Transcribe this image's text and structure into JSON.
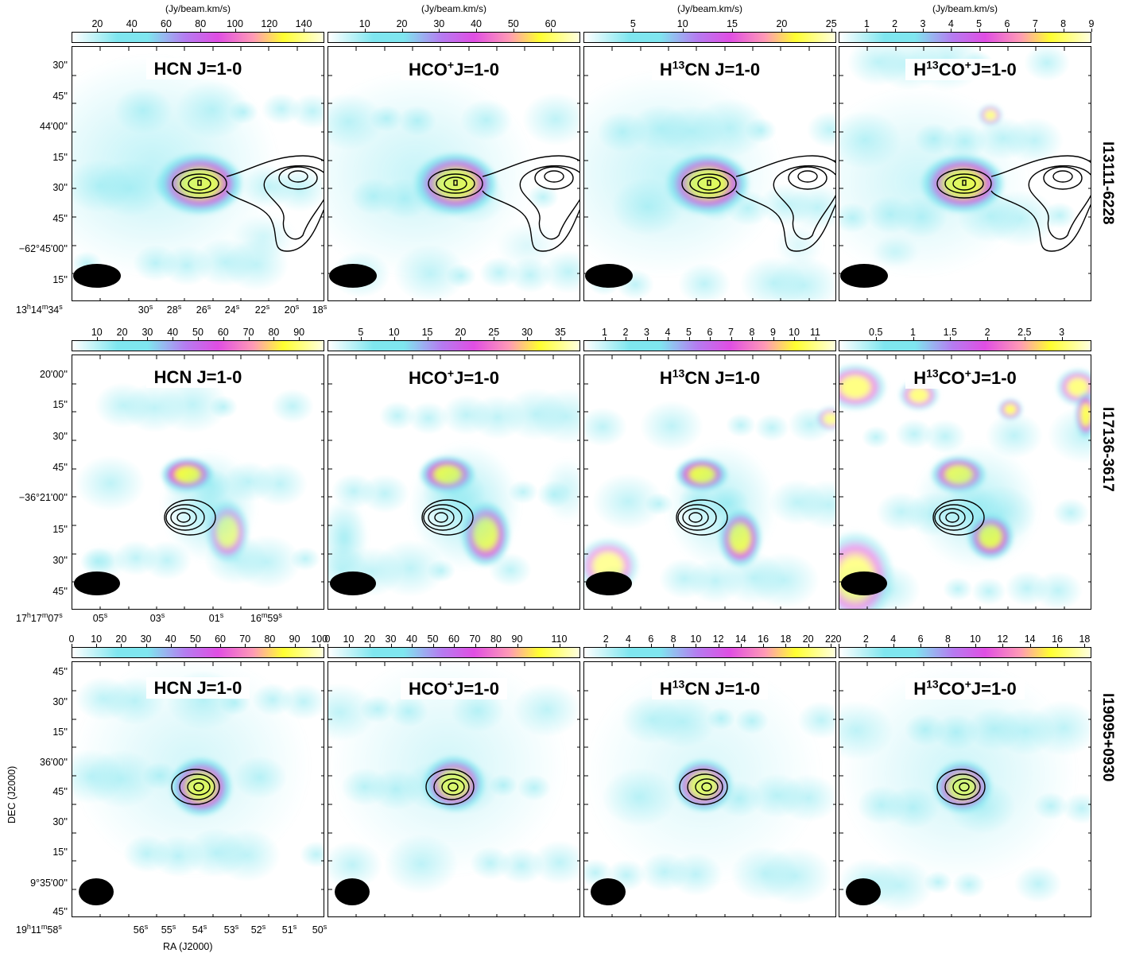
{
  "figure": {
    "units_label": "(Jy/beam.km/s)",
    "ra_axis_label": "RA (J2000)",
    "dec_axis_label": "DEC (J2000)"
  },
  "rows": [
    {
      "source": "I13111-6228",
      "show_units": true,
      "dec_ticks": [
        "30''",
        "45''",
        "44'00''",
        "15''",
        "30''",
        "45''",
        "−62°45'00''",
        "15''"
      ],
      "ra_ticks": [
        {
          "h": "13",
          "m": "14",
          "s": "34"
        },
        {
          "s": "30"
        },
        {
          "s": "28"
        },
        {
          "s": "26"
        },
        {
          "s": "24"
        },
        {
          "s": "22"
        },
        {
          "s": "20"
        },
        {
          "s": "18"
        }
      ],
      "colorbars": [
        {
          "ticks": [
            "20",
            "40",
            "60",
            "80",
            "100",
            "120",
            "140"
          ],
          "min": 5,
          "max": 152
        },
        {
          "ticks": [
            "10",
            "20",
            "30",
            "40",
            "50",
            "60"
          ],
          "min": 0,
          "max": 68
        },
        {
          "ticks": [
            "5",
            "10",
            "15",
            "20",
            "25"
          ],
          "min": 0,
          "max": 25.5
        },
        {
          "ticks": [
            "1",
            "2",
            "3",
            "4",
            "5",
            "6",
            "7",
            "8",
            "9"
          ],
          "min": 0,
          "max": 9
        }
      ]
    },
    {
      "source": "I17136-3617",
      "show_units": false,
      "dec_ticks": [
        "20'00''",
        "15''",
        "30''",
        "45''",
        "−36°21'00''",
        "15''",
        "30''",
        "45''"
      ],
      "ra_ticks": [
        {
          "h": "17",
          "m": "17",
          "s": "07"
        },
        {
          "s": "05"
        },
        {
          "s": "03"
        },
        {
          "s": "01"
        },
        {
          "m": "16",
          "s": "59"
        }
      ],
      "colorbars": [
        {
          "ticks": [
            "10",
            "20",
            "30",
            "40",
            "50",
            "60",
            "70",
            "80",
            "90"
          ],
          "min": 0,
          "max": 100
        },
        {
          "ticks": [
            "5",
            "10",
            "15",
            "20",
            "25",
            "30",
            "35"
          ],
          "min": 0,
          "max": 38
        },
        {
          "ticks": [
            "1",
            "2",
            "3",
            "4",
            "5",
            "6",
            "7",
            "8",
            "9",
            "10",
            "11"
          ],
          "min": 0,
          "max": 12
        },
        {
          "ticks": [
            "0.5",
            "1",
            "1.5",
            "2",
            "2.5",
            "3"
          ],
          "min": 0,
          "max": 3.4
        }
      ]
    },
    {
      "source": "I19095+0930",
      "show_units": false,
      "dec_ticks": [
        "45''",
        "30''",
        "15''",
        "36'00''",
        "45''",
        "30''",
        "15''",
        "9°35'00''",
        "45''"
      ],
      "ra_ticks": [
        {
          "h": "19",
          "m": "11",
          "s": "58"
        },
        {
          "s": "56"
        },
        {
          "s": "55"
        },
        {
          "s": "54"
        },
        {
          "s": "53"
        },
        {
          "s": "52"
        },
        {
          "s": "51"
        },
        {
          "s": "50"
        }
      ],
      "colorbars": [
        {
          "ticks": [
            "0",
            "10",
            "20",
            "30",
            "40",
            "50",
            "60",
            "70",
            "80",
            "90",
            "100"
          ],
          "min": 0,
          "max": 102
        },
        {
          "ticks": [
            "0",
            "10",
            "20",
            "30",
            "40",
            "50",
            "60",
            "70",
            "80",
            "90",
            "110"
          ],
          "min": 0,
          "max": 120
        },
        {
          "ticks": [
            "2",
            "4",
            "6",
            "8",
            "10",
            "12",
            "14",
            "16",
            "18",
            "20",
            "22"
          ],
          "min": 0,
          "max": 22.5
        },
        {
          "ticks": [
            "0",
            "2",
            "4",
            "6",
            "8",
            "10",
            "12",
            "14",
            "16",
            "18"
          ],
          "min": 0,
          "max": 18.5
        }
      ]
    }
  ],
  "panel_titles": [
    {
      "pre": "HCN J=1-0",
      "iso": "",
      "mid": "",
      "sup": "",
      "post": ""
    },
    {
      "pre": "HCO",
      "iso": "",
      "mid": "",
      "sup": "+",
      "post": "J=1-0"
    },
    {
      "pre": "H",
      "iso": "13",
      "mid": "CN J=1-0",
      "sup": "",
      "post": ""
    },
    {
      "pre": "H",
      "iso": "13",
      "mid": "CO",
      "sup": "+",
      "post": "J=1-0"
    }
  ],
  "colors": {
    "background": "#ffffff",
    "low": "#7fe6ef",
    "mid": "#e04ee3",
    "high": "#ffff30",
    "contour": "#000000",
    "beam": "#000000"
  }
}
